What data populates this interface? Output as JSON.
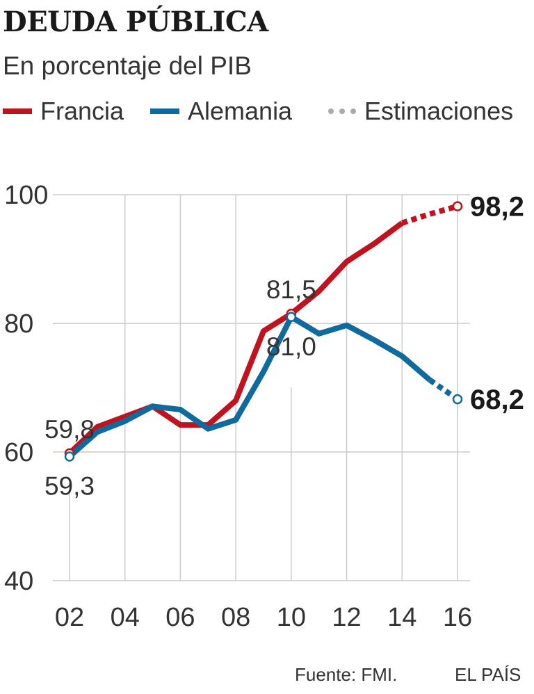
{
  "header": {
    "title": "DEUDA PÚBLICA",
    "subtitle": "En porcentaje del PIB"
  },
  "legend": {
    "francia": "Francia",
    "alemania": "Alemania",
    "estimaciones": "Estimaciones"
  },
  "footer": {
    "source": "Fuente: FMI.",
    "brand": "EL PAÍS"
  },
  "colors": {
    "francia": "#c0121f",
    "alemania": "#0f6a9e",
    "grid": "#cccccc"
  },
  "chart_data": {
    "type": "line",
    "title": "DEUDA PÚBLICA",
    "subtitle": "En porcentaje del PIB",
    "x_tick_labels": [
      "02",
      "04",
      "06",
      "08",
      "10",
      "12",
      "14",
      "16"
    ],
    "x_ticks": [
      2002,
      2004,
      2006,
      2008,
      2010,
      2012,
      2014,
      2016
    ],
    "y_ticks": [
      40,
      60,
      80,
      100
    ],
    "y_tick_labels": [
      "40",
      "60",
      "80",
      "100"
    ],
    "xlim": [
      2002,
      2016
    ],
    "ylim": [
      40,
      100
    ],
    "series": [
      {
        "name": "Francia",
        "color_key": "francia",
        "x": [
          2002,
          2003,
          2004,
          2005,
          2006,
          2007,
          2008,
          2009,
          2010,
          2011,
          2012,
          2013,
          2014
        ],
        "values": [
          59.8,
          63.9,
          65.5,
          67.1,
          64.2,
          64.2,
          68.0,
          78.8,
          81.5,
          85.0,
          89.6,
          92.4,
          95.6
        ],
        "estimate_x": [
          2014,
          2015,
          2016
        ],
        "estimate_values": [
          95.6,
          97.0,
          98.2
        ]
      },
      {
        "name": "Alemania",
        "color_key": "alemania",
        "x": [
          2002,
          2003,
          2004,
          2005,
          2006,
          2007,
          2008,
          2009,
          2010,
          2011,
          2012,
          2013,
          2014,
          2015
        ],
        "values": [
          59.3,
          63.1,
          64.8,
          67.1,
          66.6,
          63.6,
          65.0,
          72.5,
          81.0,
          78.4,
          79.7,
          77.4,
          74.9,
          71.2
        ],
        "estimate_x": [
          2015,
          2016
        ],
        "estimate_values": [
          71.2,
          68.2
        ]
      }
    ],
    "annotations": [
      {
        "text": "59,8",
        "series": "Francia",
        "x": 2002,
        "y": 59.8,
        "pos": "above",
        "bold": false
      },
      {
        "text": "59,3",
        "series": "Alemania",
        "x": 2002,
        "y": 59.3,
        "pos": "below",
        "bold": false
      },
      {
        "text": "81,5",
        "series": "Francia",
        "x": 2010,
        "y": 81.5,
        "pos": "above",
        "bold": false
      },
      {
        "text": "81,0",
        "series": "Alemania",
        "x": 2010,
        "y": 81.0,
        "pos": "below",
        "bold": false
      },
      {
        "text": "98,2",
        "series": "Francia",
        "x": 2016,
        "y": 98.2,
        "pos": "right",
        "bold": true
      },
      {
        "text": "68,2",
        "series": "Alemania",
        "x": 2016,
        "y": 68.2,
        "pos": "right",
        "bold": true
      }
    ],
    "markers": [
      {
        "series": "Francia",
        "x": 2002,
        "y": 59.8
      },
      {
        "series": "Alemania",
        "x": 2002,
        "y": 59.3
      },
      {
        "series": "Francia",
        "x": 2010,
        "y": 81.5
      },
      {
        "series": "Alemania",
        "x": 2010,
        "y": 81.0
      },
      {
        "series": "Francia",
        "x": 2016,
        "y": 98.2
      },
      {
        "series": "Alemania",
        "x": 2016,
        "y": 68.2
      }
    ]
  }
}
